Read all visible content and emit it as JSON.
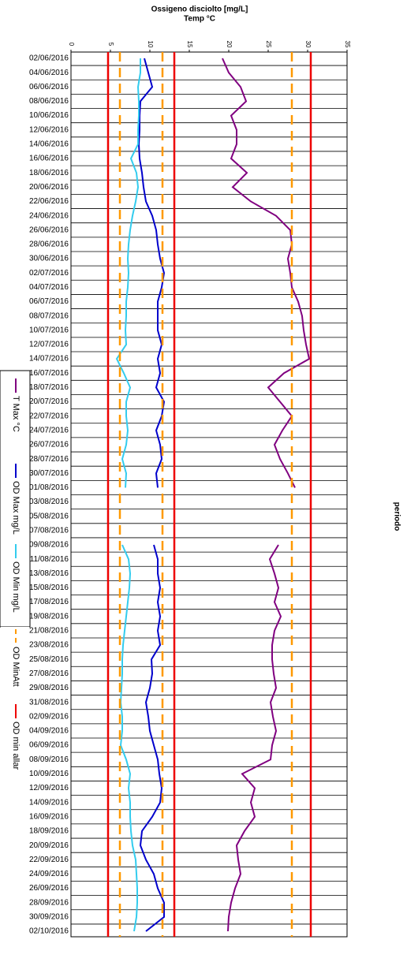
{
  "chart_data": {
    "type": "line",
    "title": "Ossigeno disciolto [mg/L]",
    "x_label": "Temp °C",
    "y_label": "periodo",
    "xlim": [
      0,
      35
    ],
    "xticks": [
      0,
      5,
      10,
      15,
      20,
      25,
      30,
      35
    ],
    "categories": [
      "02/06/2016",
      "04/06/2016",
      "06/06/2016",
      "08/06/2016",
      "10/06/2016",
      "12/06/2016",
      "14/06/2016",
      "16/06/2016",
      "18/06/2016",
      "20/06/2016",
      "22/06/2016",
      "24/06/2016",
      "26/06/2016",
      "28/06/2016",
      "30/06/2016",
      "02/07/2016",
      "04/07/2016",
      "06/07/2016",
      "08/07/2016",
      "10/07/2016",
      "12/07/2016",
      "14/07/2016",
      "16/07/2016",
      "18/07/2016",
      "20/07/2016",
      "22/07/2016",
      "24/07/2016",
      "26/07/2016",
      "28/07/2016",
      "30/07/2016",
      "01/08/2016",
      "03/08/2016",
      "05/08/2016",
      "07/08/2016",
      "09/08/2016",
      "11/08/2016",
      "13/08/2016",
      "15/08/2016",
      "17/08/2016",
      "19/08/2016",
      "21/08/2016",
      "23/08/2016",
      "25/08/2016",
      "27/08/2016",
      "29/08/2016",
      "31/08/2016",
      "02/09/2016",
      "04/09/2016",
      "06/09/2016",
      "08/09/2016",
      "10/09/2016",
      "12/09/2016",
      "14/09/2016",
      "16/09/2016",
      "18/09/2016",
      "20/09/2016",
      "22/09/2016",
      "24/09/2016",
      "26/09/2016",
      "28/09/2016",
      "30/09/2016",
      "02/10/2016"
    ],
    "series": [
      {
        "name": "T Max °C",
        "color": "#800080",
        "values": [
          19.2,
          20,
          21.5,
          22.2,
          20.3,
          21,
          21,
          20.3,
          22.3,
          20.5,
          22.8,
          26,
          27.8,
          28,
          27.5,
          27.8,
          28,
          28.8,
          29.3,
          29.5,
          29.8,
          30.2,
          27,
          25,
          26.5,
          28,
          26.8,
          25.8,
          26.5,
          27.5,
          28.4,
          null,
          null,
          null,
          26.3,
          25.2,
          25.8,
          26.3,
          25.8,
          26.6,
          25.8,
          25.5,
          25.5,
          25.7,
          26,
          25.3,
          25.6,
          26,
          25.5,
          25.3,
          21.7,
          23.3,
          22.8,
          23.3,
          22,
          21,
          21.2,
          21.5,
          20.8,
          20.3,
          20,
          19.9
        ]
      },
      {
        "name": "OD Max mg/L",
        "color": "#0000cc",
        "values": [
          9.3,
          9.8,
          10.3,
          8.8,
          8.7,
          8.7,
          8.6,
          8.7,
          9,
          9.2,
          9.5,
          10.3,
          10.8,
          11,
          11.3,
          11.8,
          11.5,
          11,
          11,
          11,
          11.5,
          11,
          11.3,
          10.8,
          11.8,
          11.5,
          10.8,
          11.3,
          11.5,
          10.8,
          11,
          null,
          null,
          null,
          10.5,
          11,
          11,
          11.3,
          11,
          11.3,
          11,
          11.3,
          10.2,
          10.3,
          10,
          9.5,
          9.8,
          10,
          10.5,
          11,
          11.2,
          11.5,
          11.3,
          10.3,
          9,
          8.8,
          9.5,
          10.5,
          11,
          11.8,
          11.8,
          9.5
        ]
      },
      {
        "name": "OD Min mg/L",
        "color": "#33ccee",
        "values": [
          8.8,
          8.8,
          8.5,
          8.6,
          8.6,
          8.5,
          8.5,
          7.6,
          8.3,
          8.5,
          8.2,
          7.8,
          7.5,
          7.3,
          7.2,
          7.3,
          7.2,
          7,
          7,
          6.9,
          7,
          5.8,
          6.7,
          7.5,
          7,
          7,
          7.2,
          7,
          6.5,
          7,
          6.9,
          null,
          null,
          null,
          6.5,
          7.3,
          7.5,
          7.4,
          7.2,
          7,
          6.8,
          6.6,
          6.5,
          6.5,
          6.4,
          6.3,
          6.5,
          6.5,
          6.3,
          7,
          7.5,
          7.3,
          7.5,
          7.5,
          7.6,
          7.8,
          8.2,
          8.3,
          8.4,
          8.4,
          8.3,
          8
        ]
      },
      {
        "name": "OD MinAtt",
        "color": "#ff9900",
        "dashed": true,
        "levels": [
          6.2,
          11.6,
          28
        ]
      },
      {
        "name": "OD min allar",
        "color": "#ee0000",
        "levels": [
          4.7,
          13.1,
          30.4
        ]
      }
    ]
  }
}
